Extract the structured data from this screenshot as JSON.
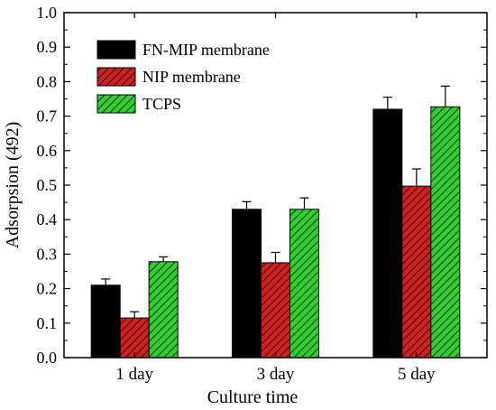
{
  "chart_data": {
    "type": "bar",
    "title": "",
    "xlabel": "Culture time",
    "ylabel": "Adsorpsion (492)",
    "ylim": [
      0,
      1.0
    ],
    "yticks": [
      "0.0",
      "0.1",
      "0.2",
      "0.3",
      "0.4",
      "0.5",
      "0.6",
      "0.7",
      "0.8",
      "0.9",
      "1.0"
    ],
    "categories": [
      "1 day",
      "3 day",
      "5 day"
    ],
    "legend_position": "top-left",
    "grid": false,
    "series": [
      {
        "name": "FN-MIP membrane",
        "values": [
          0.21,
          0.43,
          0.72
        ],
        "errors": [
          0.018,
          0.022,
          0.035
        ],
        "color": "#000000",
        "pattern": "solid"
      },
      {
        "name": "NIP membrane",
        "values": [
          0.115,
          0.275,
          0.497
        ],
        "errors": [
          0.018,
          0.03,
          0.05
        ],
        "color": "#cc2222",
        "pattern": "hatch"
      },
      {
        "name": "TCPS",
        "values": [
          0.278,
          0.43,
          0.727
        ],
        "errors": [
          0.014,
          0.033,
          0.06
        ],
        "color": "#33cc33",
        "pattern": "hatch"
      }
    ]
  }
}
